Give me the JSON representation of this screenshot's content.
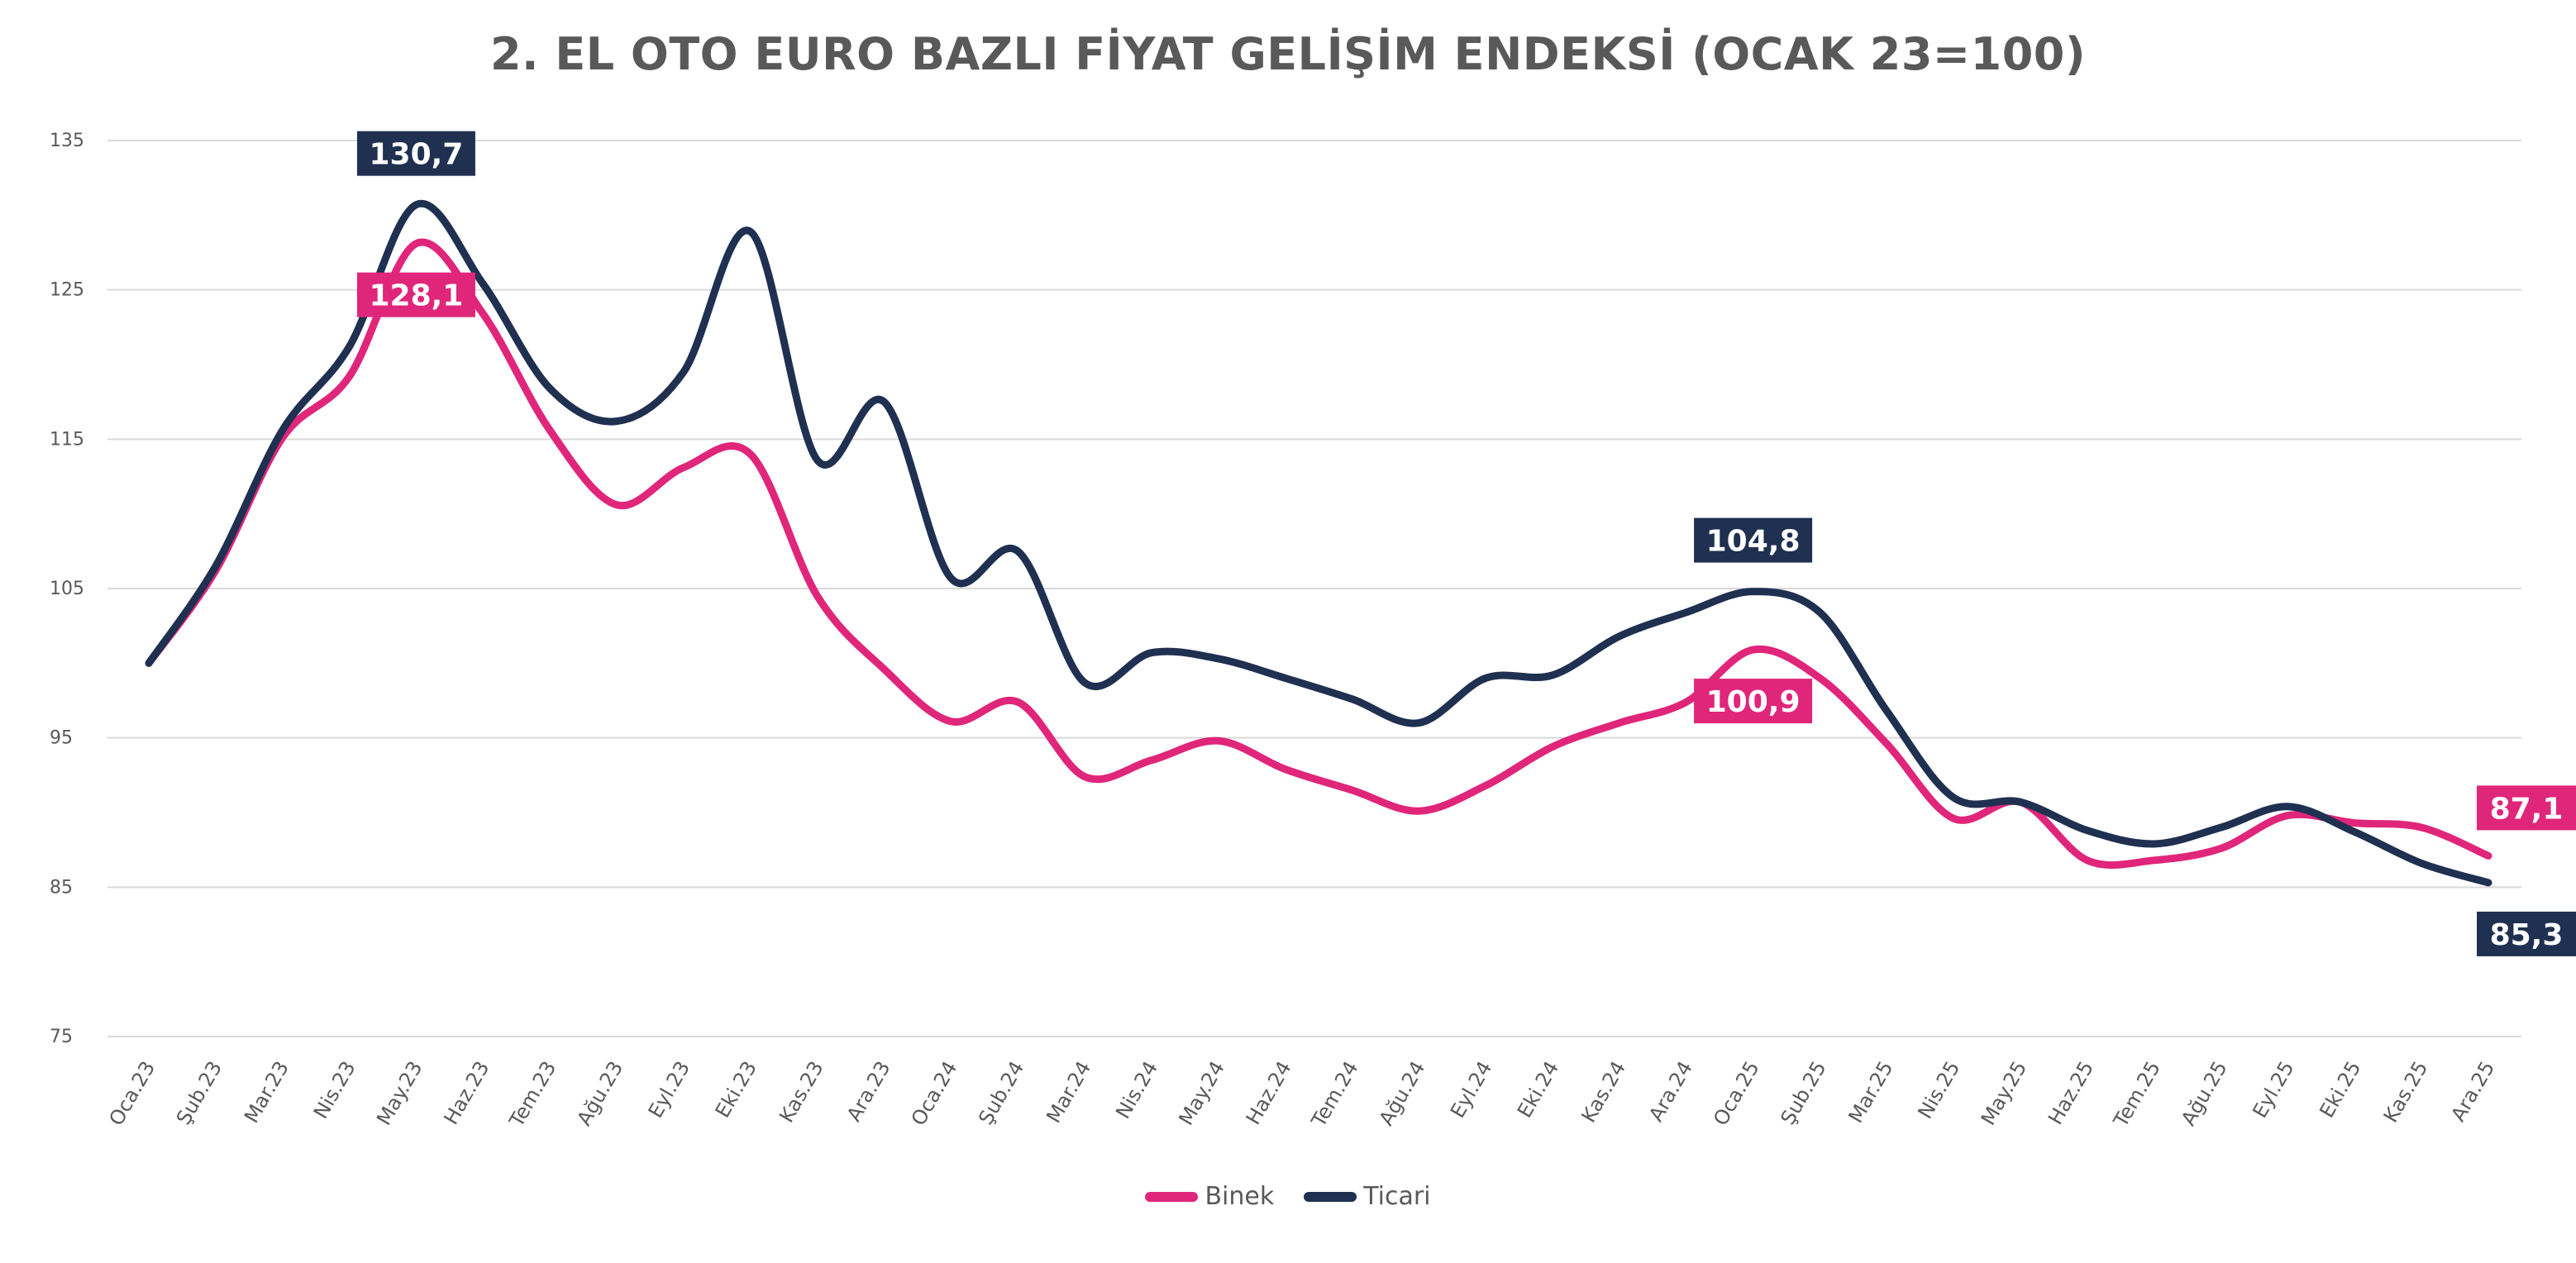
{
  "chart_data": {
    "type": "line",
    "title": "2. EL OTO EURO BAZLI FİYAT GELİŞİM ENDEKSİ (OCAK 23=100)",
    "xlabel": "",
    "ylabel": "",
    "ylim": [
      75,
      135
    ],
    "yticks": [
      75,
      85,
      95,
      105,
      115,
      125,
      135
    ],
    "grid": true,
    "smooth": true,
    "legend_position": "bottom",
    "categories": [
      "Oca.23",
      "Şub.23",
      "Mar.23",
      "Nis.23",
      "May.23",
      "Haz.23",
      "Tem.23",
      "Ağu.23",
      "Eyl.23",
      "Eki.23",
      "Kas.23",
      "Ara.23",
      "Oca.24",
      "Şub.24",
      "Mar.24",
      "Nis.24",
      "May.24",
      "Haz.24",
      "Tem.24",
      "Ağu.24",
      "Eyl.24",
      "Eki.24",
      "Kas.24",
      "Ara.24",
      "Oca.25",
      "Şub.25",
      "Mar.25",
      "Nis.25",
      "May.25",
      "Haz.25",
      "Tem.25",
      "Ağu.25",
      "Eyl.25",
      "Eki.25",
      "Kas.25",
      "Ara.25"
    ],
    "series": [
      {
        "name": "Binek",
        "color": "#e0267a",
        "values": [
          100,
          106.2,
          115.1,
          119.2,
          128.1,
          123.4,
          115.6,
          110.6,
          113.1,
          114,
          104.5,
          99.6,
          96.1,
          97.4,
          92.4,
          93.5,
          94.8,
          92.9,
          91.5,
          90.1,
          91.8,
          94.4,
          96,
          97.4,
          100.9,
          99,
          94.6,
          89.6,
          90.7,
          86.8,
          86.8,
          87.6,
          89.8,
          89.3,
          89,
          87.1
        ]
      },
      {
        "name": "Ticari",
        "color": "#1f3050",
        "values": [
          100,
          106.5,
          115.6,
          121.2,
          130.7,
          125.4,
          118.4,
          116.2,
          119.5,
          128.9,
          113.6,
          117.5,
          105.7,
          107.5,
          98.7,
          100.7,
          100.3,
          99,
          97.6,
          96,
          99,
          99.2,
          101.8,
          103.4,
          104.8,
          103.4,
          96.8,
          91,
          90.7,
          88.8,
          87.9,
          89,
          90.4,
          88.7,
          86.6,
          85.3
        ]
      }
    ],
    "data_labels": [
      {
        "series": "Ticari",
        "category": "May.23",
        "text": "130,7"
      },
      {
        "series": "Binek",
        "category": "May.23",
        "text": "128,1"
      },
      {
        "series": "Ticari",
        "category": "Oca.25",
        "text": "104,8"
      },
      {
        "series": "Binek",
        "category": "Oca.25",
        "text": "100,9"
      },
      {
        "series": "Binek",
        "category": "Ara.25",
        "text": "87,1"
      },
      {
        "series": "Ticari",
        "category": "Ara.25",
        "text": "85,3"
      }
    ]
  }
}
